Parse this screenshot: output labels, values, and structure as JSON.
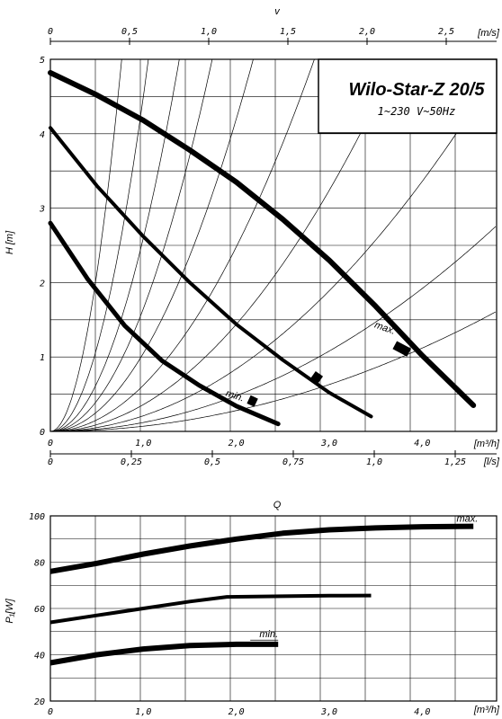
{
  "chart_data": [
    {
      "type": "line",
      "name": "pump-curve",
      "title": "Wilo-Star-Z 20/5",
      "subtitle": "1~230 V~50Hz",
      "ylabel": "H [m]",
      "xlabel": "[m³/h]",
      "top_axis_label": "v",
      "top_axis_unit": "[m/s]",
      "bottom_secondary_unit": "[l/s]",
      "xlim": [
        0,
        4.8
      ],
      "ylim": [
        0,
        5
      ],
      "x_ticks": [
        "0",
        "1,0",
        "2,0",
        "3,0",
        "4,0"
      ],
      "y_ticks": [
        "0",
        "1",
        "2",
        "3",
        "4",
        "5"
      ],
      "top_ticks": [
        "0",
        "0,5",
        "1,0",
        "1,5",
        "2,0",
        "2,5"
      ],
      "ls_ticks": [
        "0",
        "0,25",
        "0,5",
        "0,75",
        "1,0",
        "1,25"
      ],
      "grid": true,
      "series": [
        {
          "label": "max.",
          "x": [
            0,
            0.5,
            1.0,
            1.5,
            2.0,
            2.5,
            3.0,
            3.5,
            4.0,
            4.55
          ],
          "y": [
            4.82,
            4.52,
            4.18,
            3.78,
            3.35,
            2.85,
            2.3,
            1.68,
            1.02,
            0.35
          ]
        },
        {
          "label": "",
          "x": [
            0,
            0.5,
            1.0,
            1.5,
            2.0,
            2.5,
            3.0,
            3.45
          ],
          "y": [
            4.08,
            3.3,
            2.62,
            2.0,
            1.44,
            0.96,
            0.52,
            0.2
          ]
        },
        {
          "label": "min.",
          "x": [
            0,
            0.4,
            0.8,
            1.2,
            1.6,
            2.0,
            2.45
          ],
          "y": [
            2.8,
            2.05,
            1.42,
            0.95,
            0.62,
            0.34,
            0.1
          ]
        }
      ],
      "system_curves_k": [
        8.5,
        4.5,
        2.6,
        1.65,
        1.05,
        0.62,
        0.36,
        0.21,
        0.12,
        0.07
      ]
    },
    {
      "type": "line",
      "name": "power-curve",
      "title": "Q",
      "ylabel": "P₁[W]",
      "xlabel": "[m³/h]",
      "xlim": [
        0,
        4.8
      ],
      "ylim": [
        20,
        100
      ],
      "x_ticks": [
        "0",
        "1,0",
        "2,0",
        "3,0",
        "4,0"
      ],
      "y_ticks": [
        "20",
        "40",
        "60",
        "80",
        "100"
      ],
      "grid": true,
      "series": [
        {
          "label": "max.",
          "x": [
            0,
            0.5,
            1.0,
            1.5,
            2.0,
            2.5,
            3.0,
            3.5,
            4.0,
            4.55
          ],
          "y": [
            76,
            79.5,
            83.5,
            87,
            90,
            92.5,
            94,
            94.8,
            95.3,
            95.5
          ]
        },
        {
          "label": "",
          "x": [
            0,
            0.5,
            1.0,
            1.5,
            1.9,
            2.5,
            3.0,
            3.45
          ],
          "y": [
            54,
            57,
            60,
            63,
            65,
            65.3,
            65.5,
            65.6
          ]
        },
        {
          "label": "min.",
          "x": [
            0,
            0.5,
            1.0,
            1.5,
            2.0,
            2.45
          ],
          "y": [
            36.5,
            40,
            42.5,
            44,
            44.5,
            44.5
          ]
        }
      ]
    }
  ]
}
